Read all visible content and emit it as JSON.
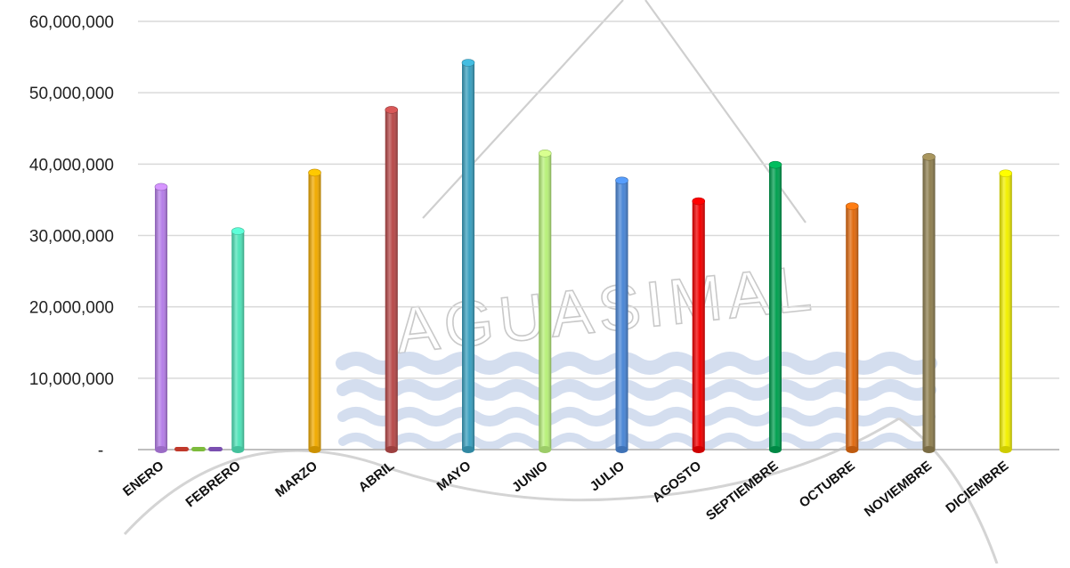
{
  "watermark": {
    "text": "AGUASIMAL"
  },
  "colors": {
    "grid": "#d9d9d9",
    "axis": "#bfbfbf",
    "watermark_wave": "#c5d3ea",
    "watermark_line": "#cfcfcf"
  },
  "chart_data": {
    "type": "bar",
    "title": "",
    "xlabel": "",
    "ylabel": "",
    "ylim": [
      0,
      60000000
    ],
    "grid": true,
    "legend": "none",
    "y_ticks": [
      {
        "value": 0,
        "label": "-"
      },
      {
        "value": 10000000,
        "label": "10,000,000"
      },
      {
        "value": 20000000,
        "label": "20,000,000"
      },
      {
        "value": 30000000,
        "label": "30,000,000"
      },
      {
        "value": 40000000,
        "label": "40,000,000"
      },
      {
        "value": 50000000,
        "label": "50,000,000"
      },
      {
        "value": 60000000,
        "label": "60,000,000"
      }
    ],
    "categories": [
      "ENERO",
      "FEBRERO",
      "MARZO",
      "ABRIL",
      "MAYO",
      "JUNIO",
      "JULIO",
      "AGOSTO",
      "SEPTIEMBRE",
      "OCTUBRE",
      "NOVIEMBRE",
      "DICIEMBRE"
    ],
    "values": [
      36800000,
      30600000,
      38800000,
      47600000,
      54200000,
      41500000,
      37700000,
      34800000,
      39900000,
      34100000,
      41000000,
      38700000
    ],
    "colors": [
      "#b57ee8",
      "#4fe3b8",
      "#f0aa00",
      "#b84a4a",
      "#3aa0bf",
      "#b8f07a",
      "#4a86d6",
      "#f20000",
      "#00a050",
      "#e06a10",
      "#8f7f50",
      "#f2f000"
    ],
    "extra_series": [
      {
        "values": [
          0,
          0,
          0,
          0,
          0,
          0,
          0,
          0,
          0,
          0,
          0,
          0
        ],
        "color": "#c0392b"
      },
      {
        "values": [
          0,
          0,
          0,
          0,
          0,
          0,
          0,
          0,
          0,
          0,
          0,
          0
        ],
        "color": "#7dbb3c"
      },
      {
        "values": [
          0,
          0,
          0,
          0,
          0,
          0,
          0,
          0,
          0,
          0,
          0,
          0
        ],
        "color": "#7a4fb0"
      }
    ]
  }
}
